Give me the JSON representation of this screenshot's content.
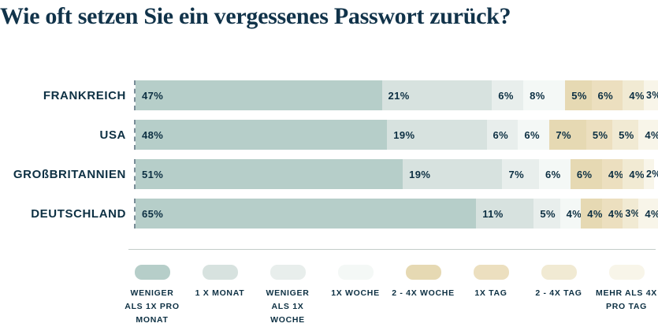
{
  "colors": {
    "background": "#ffffff",
    "title": "#11334a",
    "text": "#0d3043",
    "divider": "#c3ccc8"
  },
  "chart_data": {
    "type": "bar",
    "orientation": "horizontal",
    "stacked": true,
    "title": "Wie oft setzen Sie ein vergessenes Passwort zurück?",
    "value_suffix": "%",
    "xlim": [
      0,
      100
    ],
    "grid": false,
    "legend_position": "bottom",
    "categories": [
      "FRANKREICH",
      "USA",
      "GROßBRITANNIEN",
      "DEUTSCHLAND"
    ],
    "series": [
      {
        "name": "WENIGER ALS 1X PRO MONAT",
        "legend_lines": [
          "WENIGER",
          "ALS 1X PRO",
          "MONAT"
        ],
        "color": "#b6cec9",
        "values": [
          47,
          48,
          51,
          65
        ]
      },
      {
        "name": "1 X MONAT",
        "legend_lines": [
          "1 X MONAT"
        ],
        "color": "#d7e2df",
        "values": [
          21,
          19,
          19,
          11
        ]
      },
      {
        "name": "WENIGER ALS 1X WOCHE",
        "legend_lines": [
          "WENIGER",
          "ALS 1X",
          "WOCHE"
        ],
        "color": "#e8eeec",
        "values": [
          6,
          6,
          7,
          5
        ]
      },
      {
        "name": "1X WOCHE",
        "legend_lines": [
          "1X WOCHE"
        ],
        "color": "#f4f8f6",
        "values": [
          8,
          6,
          6,
          4
        ]
      },
      {
        "name": "2 - 4X WOCHE",
        "legend_lines": [
          "2 - 4X WOCHE"
        ],
        "color": "#e6d9b3",
        "values": [
          5,
          7,
          6,
          4
        ]
      },
      {
        "name": "1X TAG",
        "legend_lines": [
          "1X TAG"
        ],
        "color": "#ecdfbf",
        "values": [
          6,
          5,
          4,
          4
        ]
      },
      {
        "name": "2 - 4X TAG",
        "legend_lines": [
          "2 - 4X TAG"
        ],
        "color": "#f1ead3",
        "values": [
          4,
          5,
          4,
          3
        ]
      },
      {
        "name": "MEHR ALS 4X PRO TAG",
        "legend_lines": [
          "MEHR ALS 4X",
          "PRO TAG"
        ],
        "color": "#f8f5e9",
        "values": [
          3,
          4,
          2,
          4
        ]
      }
    ]
  }
}
